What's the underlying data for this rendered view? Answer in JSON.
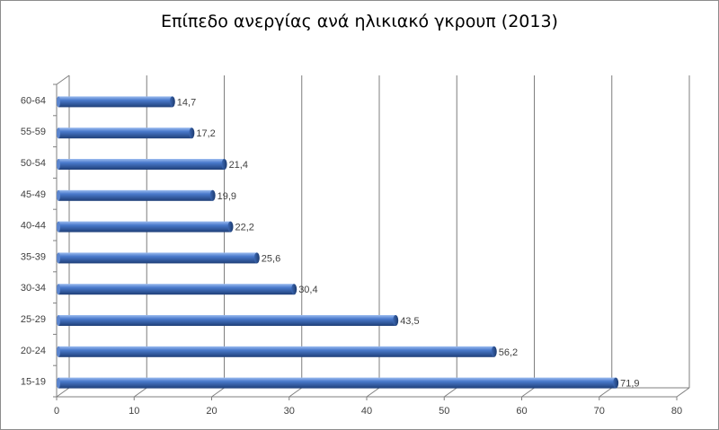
{
  "chart_data": {
    "type": "bar",
    "orientation": "horizontal",
    "title": "Επίπεδο ανεργίας ανά ηλικιακό γκρουπ (2013)",
    "categories": [
      "60-64",
      "55-59",
      "50-54",
      "45-49",
      "40-44",
      "35-39",
      "30-34",
      "25-29",
      "20-24",
      "15-19"
    ],
    "values": [
      14.7,
      17.2,
      21.4,
      19.9,
      22.2,
      25.6,
      30.4,
      43.5,
      56.2,
      71.9
    ],
    "value_labels": [
      "14,7",
      "17,2",
      "21,4",
      "19,9",
      "22,2",
      "25,6",
      "30,4",
      "43,5",
      "56,2",
      "71,9"
    ],
    "xlim": [
      0,
      80
    ],
    "xticks": [
      "0",
      "10",
      "20",
      "30",
      "40",
      "50",
      "60",
      "70",
      "80"
    ],
    "xlabel": "",
    "ylabel": "",
    "grid": true,
    "legend": "none",
    "bar_color": "#4472c4",
    "bar_dark": "#1f3f78",
    "bar_light": "#8fb0e6",
    "grid_color": "#7f7f7f"
  }
}
